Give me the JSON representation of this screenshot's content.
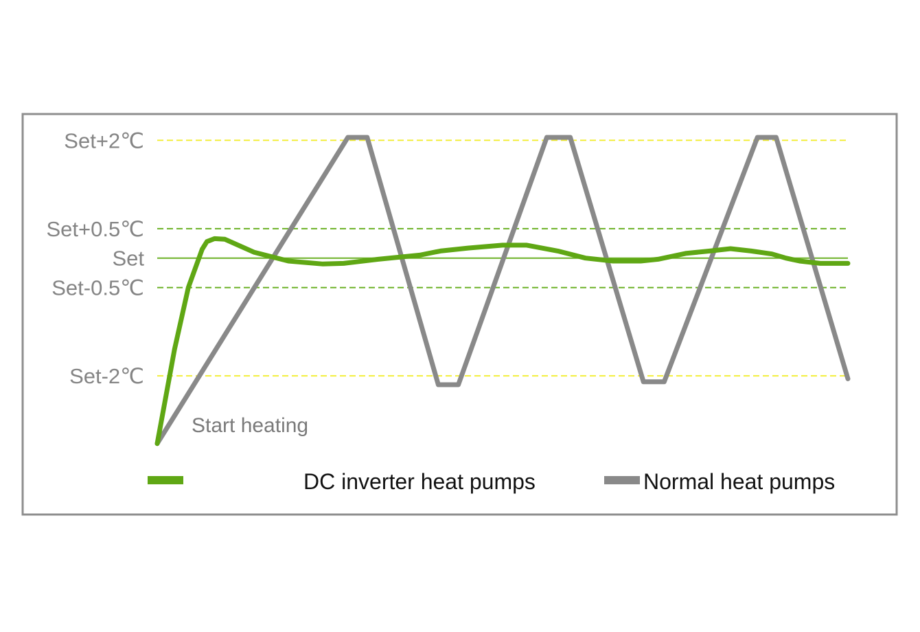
{
  "chart_data": {
    "type": "line",
    "title": "",
    "xlabel": "",
    "ylabel": "",
    "y_tick_labels": [
      "Set+2℃",
      "Set+0.5℃",
      "Set",
      "Set-0.5℃",
      "Set-2℃"
    ],
    "y_ticks": [
      2,
      0.5,
      0,
      -0.5,
      -2
    ],
    "xlim": [
      0,
      100
    ],
    "ylim": [
      -3.2,
      2.4
    ],
    "grid": {
      "lines": [
        {
          "y": 2,
          "style": "dashed",
          "color": "#f2ee3a"
        },
        {
          "y": 0.5,
          "style": "dashed",
          "color": "#6ab023"
        },
        {
          "y": 0,
          "style": "solid",
          "color": "#6ab023"
        },
        {
          "y": -0.5,
          "style": "dashed",
          "color": "#6ab023"
        },
        {
          "y": -2,
          "style": "dashed",
          "color": "#f2ee3a"
        }
      ]
    },
    "annotation": "Start heating",
    "legend_position": "bottom",
    "series": [
      {
        "name": "DC inverter heat pumps",
        "color": "#5fa714",
        "x": [
          0,
          2.5,
          4.5,
          6.5,
          7.2,
          8.3,
          9.8,
          14,
          19,
          24,
          27,
          32,
          38,
          41,
          45,
          50,
          53.5,
          58,
          62,
          66,
          70,
          72.5,
          76.5,
          80,
          83,
          86,
          89,
          91,
          93,
          96,
          98,
          100
        ],
        "y": [
          -3.15,
          -1.55,
          -0.5,
          0.15,
          0.28,
          0.33,
          0.32,
          0.1,
          -0.05,
          -0.1,
          -0.09,
          -0.02,
          0.05,
          0.12,
          0.17,
          0.22,
          0.22,
          0.12,
          0.0,
          -0.05,
          -0.05,
          -0.02,
          0.08,
          0.12,
          0.16,
          0.12,
          0.07,
          0.0,
          -0.05,
          -0.09,
          -0.09,
          -0.09
        ]
      },
      {
        "name": "Normal heat pumps",
        "color": "#898989",
        "x": [
          0,
          27.6,
          30.4,
          40.7,
          43.6,
          56.4,
          59.8,
          70.4,
          73.4,
          86.9,
          89.6,
          100
        ],
        "y": [
          -3.15,
          2.05,
          2.05,
          -2.15,
          -2.15,
          2.05,
          2.05,
          -2.1,
          -2.1,
          2.05,
          2.05,
          -2.05
        ]
      }
    ]
  }
}
